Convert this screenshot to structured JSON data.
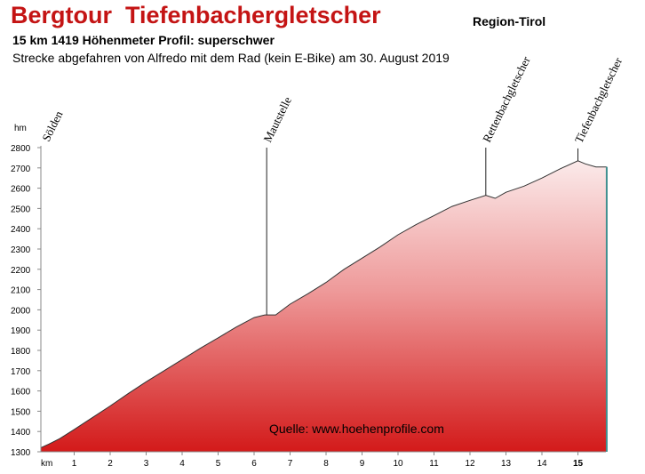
{
  "header": {
    "title": "Bergtour  Tiefenbachergletscher",
    "region": "Region-Tirol",
    "stats": "15 km 1419 Höhenmeter  Profil: superschwer",
    "subtitle": "Strecke abgefahren von Alfredo mit dem Rad (kein E-Bike) am 30. August 2019"
  },
  "colors": {
    "title": "#c41414",
    "fill_top": "#fbeaea",
    "fill_bottom": "#d31a1a",
    "end_line": "#3f8f8f"
  },
  "chart_data": {
    "type": "area",
    "y_unit_label": "hm",
    "x_unit_label": "km",
    "xlim": [
      0,
      15.9
    ],
    "ylim": [
      1300,
      2800
    ],
    "yticks": [
      1300,
      1400,
      1500,
      1600,
      1700,
      1800,
      1900,
      2000,
      2100,
      2200,
      2300,
      2400,
      2500,
      2600,
      2700,
      2800
    ],
    "xticks": [
      1,
      2,
      3,
      4,
      5,
      6,
      7,
      8,
      9,
      10,
      11,
      12,
      13,
      14,
      15
    ],
    "bold_xtick": 15,
    "x": [
      0,
      0.3,
      0.6,
      1.0,
      1.5,
      2.0,
      2.5,
      3.0,
      3.5,
      4.0,
      4.5,
      5.0,
      5.5,
      6.0,
      6.3,
      6.6,
      7.0,
      7.5,
      8.0,
      8.5,
      9.0,
      9.5,
      10.0,
      10.5,
      11.0,
      11.5,
      12.0,
      12.44,
      12.7,
      13.0,
      13.5,
      14.0,
      14.5,
      15.0,
      15.2,
      15.5,
      15.8
    ],
    "y": [
      1320,
      1338,
      1365,
      1410,
      1468,
      1526,
      1587,
      1645,
      1700,
      1755,
      1810,
      1862,
      1915,
      1962,
      1975,
      1975,
      2028,
      2080,
      2135,
      2200,
      2255,
      2310,
      2370,
      2420,
      2465,
      2510,
      2540,
      2565,
      2550,
      2580,
      2610,
      2650,
      2695,
      2735,
      2720,
      2705,
      2705
    ],
    "waypoints": [
      {
        "label": "Sölden",
        "x": 0
      },
      {
        "label": "Mautstelle",
        "x": 6.35
      },
      {
        "label": "Rettenbachgletscher",
        "x": 12.44
      },
      {
        "label": "Tiefenbachgletscher",
        "x": 15.0
      }
    ],
    "source": "Quelle: www.hoehenprofile.com"
  }
}
